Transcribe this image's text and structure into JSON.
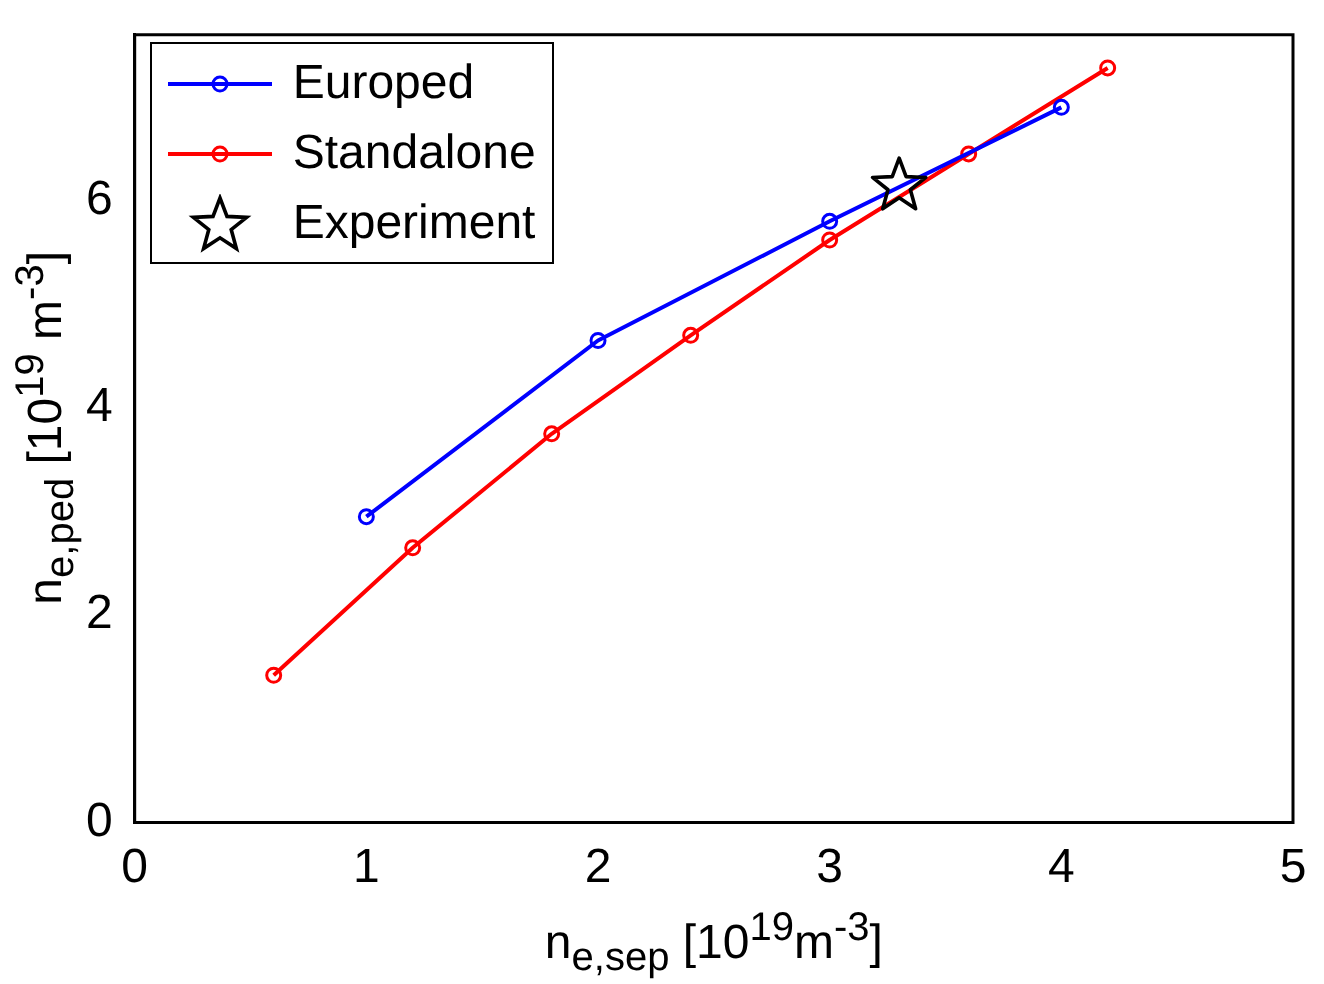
{
  "chart_data": {
    "type": "line",
    "xlabel": "n$_{e,sep}$  [10$^{19}$m$^{-3}$]",
    "ylabel": "n$_{e,ped}$ [10$^{19}$ m$^{-3}$]",
    "xlim": [
      0,
      5
    ],
    "xticks": [
      0,
      1,
      2,
      3,
      4,
      5
    ],
    "ylim": [
      0,
      7.6
    ],
    "yticks": [
      0,
      2,
      4,
      6
    ],
    "grid": false,
    "legend": "top left",
    "series": [
      {
        "name": "Europed",
        "type": "line",
        "color": "#0000ff",
        "marker": "circle",
        "x": [
          1,
          2,
          3,
          4
        ],
        "values": [
          2.95,
          4.65,
          5.8,
          6.9
        ]
      },
      {
        "name": "Standalone",
        "type": "line",
        "color": "#ff0000",
        "marker": "circle",
        "x": [
          0.6,
          1.2,
          1.8,
          2.4,
          3.0,
          3.6,
          4.2
        ],
        "values": [
          1.42,
          2.65,
          3.75,
          4.7,
          5.62,
          6.45,
          7.28
        ]
      },
      {
        "name": "Experiment",
        "type": "scatter",
        "color": "#000000",
        "marker": "star",
        "x": [
          3.3
        ],
        "values": [
          6.14
        ]
      }
    ]
  }
}
